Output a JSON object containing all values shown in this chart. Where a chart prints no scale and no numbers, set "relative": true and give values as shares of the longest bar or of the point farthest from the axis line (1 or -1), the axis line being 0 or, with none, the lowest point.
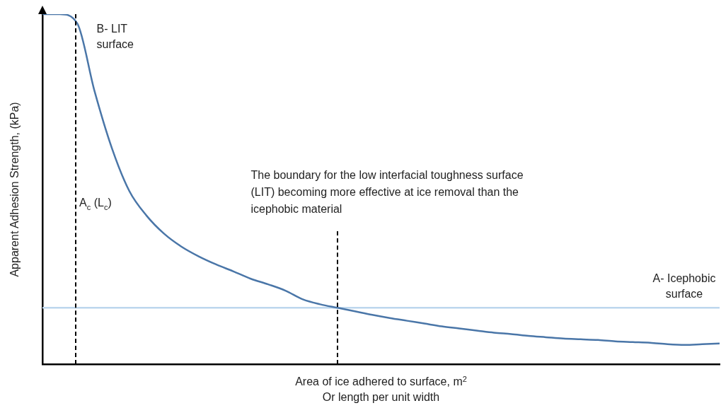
{
  "chart_data": {
    "type": "line",
    "relative": true,
    "legend": false,
    "grid": false,
    "tick_labels": false,
    "marker": "none",
    "line_style": "solid",
    "xlabel": "Area of ice adhered to surface, m$^{2}$\nOr length per unit width",
    "ylabel": "Apparent Adhesion Strength, (kPa)",
    "categories": [
      null,
      null,
      null,
      null,
      null,
      null,
      null,
      null,
      null,
      null,
      null,
      null,
      null,
      null,
      null,
      null,
      null,
      null,
      null,
      null,
      null,
      null,
      null,
      null,
      null,
      null,
      null,
      null,
      null,
      null,
      null,
      null,
      null,
      null,
      null,
      null,
      null,
      null,
      null,
      null
    ],
    "series": [
      {
        "name": "B- LIT surface",
        "color": "#4a76a8",
        "values": [
          1,
          1,
          0.974,
          0.78,
          0.617,
          0.495,
          0.424,
          0.373,
          0.336,
          0.308,
          0.285,
          0.265,
          0.244,
          0.228,
          0.21,
          0.185,
          0.171,
          0.161,
          0.151,
          0.141,
          0.132,
          0.124,
          0.116,
          0.108,
          0.102,
          0.096,
          0.09,
          0.086,
          0.081,
          0.077,
          0.073,
          0.071,
          0.069,
          0.065,
          0.063,
          0.061,
          0.057,
          0.055,
          0.057,
          0.059
        ]
      },
      {
        "name": "A- Icephobic surface",
        "color": "#bdd7ee",
        "values": [
          0.161,
          0.161,
          0.161,
          0.161,
          0.161,
          0.161,
          0.161,
          0.161,
          0.161,
          0.161,
          0.161,
          0.161,
          0.161,
          0.161,
          0.161,
          0.161,
          0.161,
          0.161,
          0.161,
          0.161,
          0.161,
          0.161,
          0.161,
          0.161,
          0.161,
          0.161,
          0.161,
          0.161,
          0.161,
          0.161,
          0.161,
          0.161,
          0.161,
          0.161,
          0.161,
          0.161,
          0.161,
          0.161,
          0.161,
          0.161
        ]
      }
    ],
    "annotations": [
      "A$_{c}$ (L$_{c}$)",
      "The boundary for the low interfacial toughness surface (LIT) becoming more effective at ice removal than the icephobic material"
    ]
  }
}
